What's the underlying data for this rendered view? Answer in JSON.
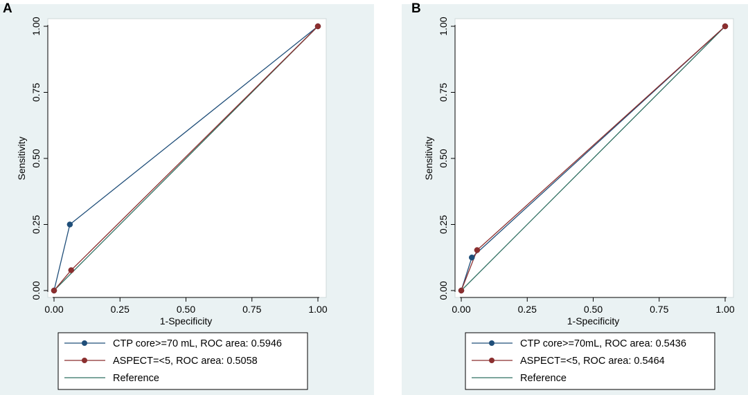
{
  "panels": [
    {
      "letter": "A"
    },
    {
      "letter": "B"
    }
  ],
  "colors": {
    "background": "#eaf2f3",
    "plot_background": "#ffffff",
    "ctp": "#1f4e79",
    "aspect": "#8b2f2f",
    "reference": "#2e6f61"
  },
  "chart_data": [
    {
      "type": "line",
      "panel": "A",
      "xlabel": "1-Specificity",
      "ylabel": "Sensitivity",
      "xlim": [
        0,
        1
      ],
      "ylim": [
        0,
        1
      ],
      "x_ticks": [
        "0.00",
        "0.25",
        "0.50",
        "0.75",
        "1.00"
      ],
      "y_ticks": [
        "0.00",
        "0.25",
        "0.50",
        "0.75",
        "1.00"
      ],
      "grid": false,
      "legend_position": "bottom",
      "series": [
        {
          "name": "CTP core>=70 mL, ROC area: 0.5946",
          "key": "ctp",
          "x": [
            0,
            0.06,
            1
          ],
          "y": [
            0,
            0.25,
            1
          ],
          "markers": true
        },
        {
          "name": "ASPECT=<5, ROC area: 0.5058",
          "key": "aspect",
          "x": [
            0,
            0.065,
            1
          ],
          "y": [
            0,
            0.077,
            1
          ],
          "markers": true
        },
        {
          "name": "Reference",
          "key": "reference",
          "x": [
            0,
            1
          ],
          "y": [
            0,
            1
          ],
          "markers": false
        }
      ]
    },
    {
      "type": "line",
      "panel": "B",
      "xlabel": "1-Specificity",
      "ylabel": "Sensitivity",
      "xlim": [
        0,
        1
      ],
      "ylim": [
        0,
        1
      ],
      "x_ticks": [
        "0.00",
        "0.25",
        "0.50",
        "0.75",
        "1.00"
      ],
      "y_ticks": [
        "0.00",
        "0.25",
        "0.50",
        "0.75",
        "1.00"
      ],
      "grid": false,
      "legend_position": "bottom",
      "series": [
        {
          "name": "CTP core>=70mL, ROC area: 0.5436",
          "key": "ctp",
          "x": [
            0,
            0.04,
            1
          ],
          "y": [
            0,
            0.125,
            1
          ],
          "markers": true
        },
        {
          "name": "ASPECT=<5, ROC area: 0.5464",
          "key": "aspect",
          "x": [
            0,
            0.06,
            1
          ],
          "y": [
            0,
            0.153,
            1
          ],
          "markers": true
        },
        {
          "name": "Reference",
          "key": "reference",
          "x": [
            0,
            1
          ],
          "y": [
            0,
            1
          ],
          "markers": false
        }
      ]
    }
  ]
}
